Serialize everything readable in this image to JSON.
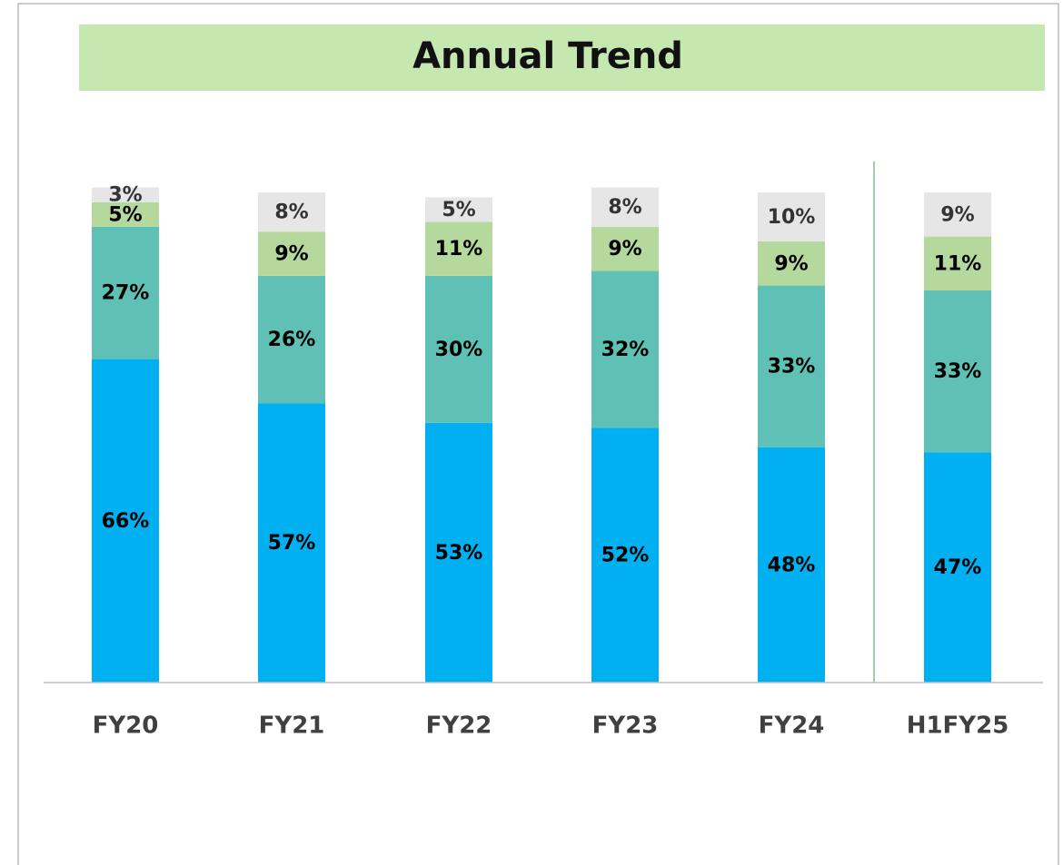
{
  "chart_data": {
    "type": "stacked_bar",
    "title": "Annual Trend",
    "categories": [
      "FY20",
      "FY21",
      "FY22",
      "FY23",
      "FY24",
      "H1FY25"
    ],
    "series": [
      {
        "color": "#00b0f0",
        "values": [
          66,
          57,
          53,
          52,
          48,
          47
        ],
        "value_labels": [
          "66%",
          "57%",
          "53%",
          "52%",
          "48%",
          "47%"
        ]
      },
      {
        "color": "#5fc1b5",
        "values": [
          27,
          26,
          30,
          32,
          33,
          33
        ],
        "value_labels": [
          "27%",
          "26%",
          "30%",
          "32%",
          "33%",
          "33%"
        ]
      },
      {
        "color": "#b5d99c",
        "values": [
          5,
          9,
          11,
          9,
          9,
          11
        ],
        "value_labels": [
          "5%",
          "9%",
          "11%",
          "9%",
          "9%",
          "11%"
        ]
      },
      {
        "color": "#e7e6e6",
        "values": [
          3,
          8,
          5,
          8,
          10,
          9
        ],
        "value_labels": [
          "3%",
          "8%",
          "5%",
          "8%",
          "10%",
          "9%"
        ]
      }
    ]
  }
}
